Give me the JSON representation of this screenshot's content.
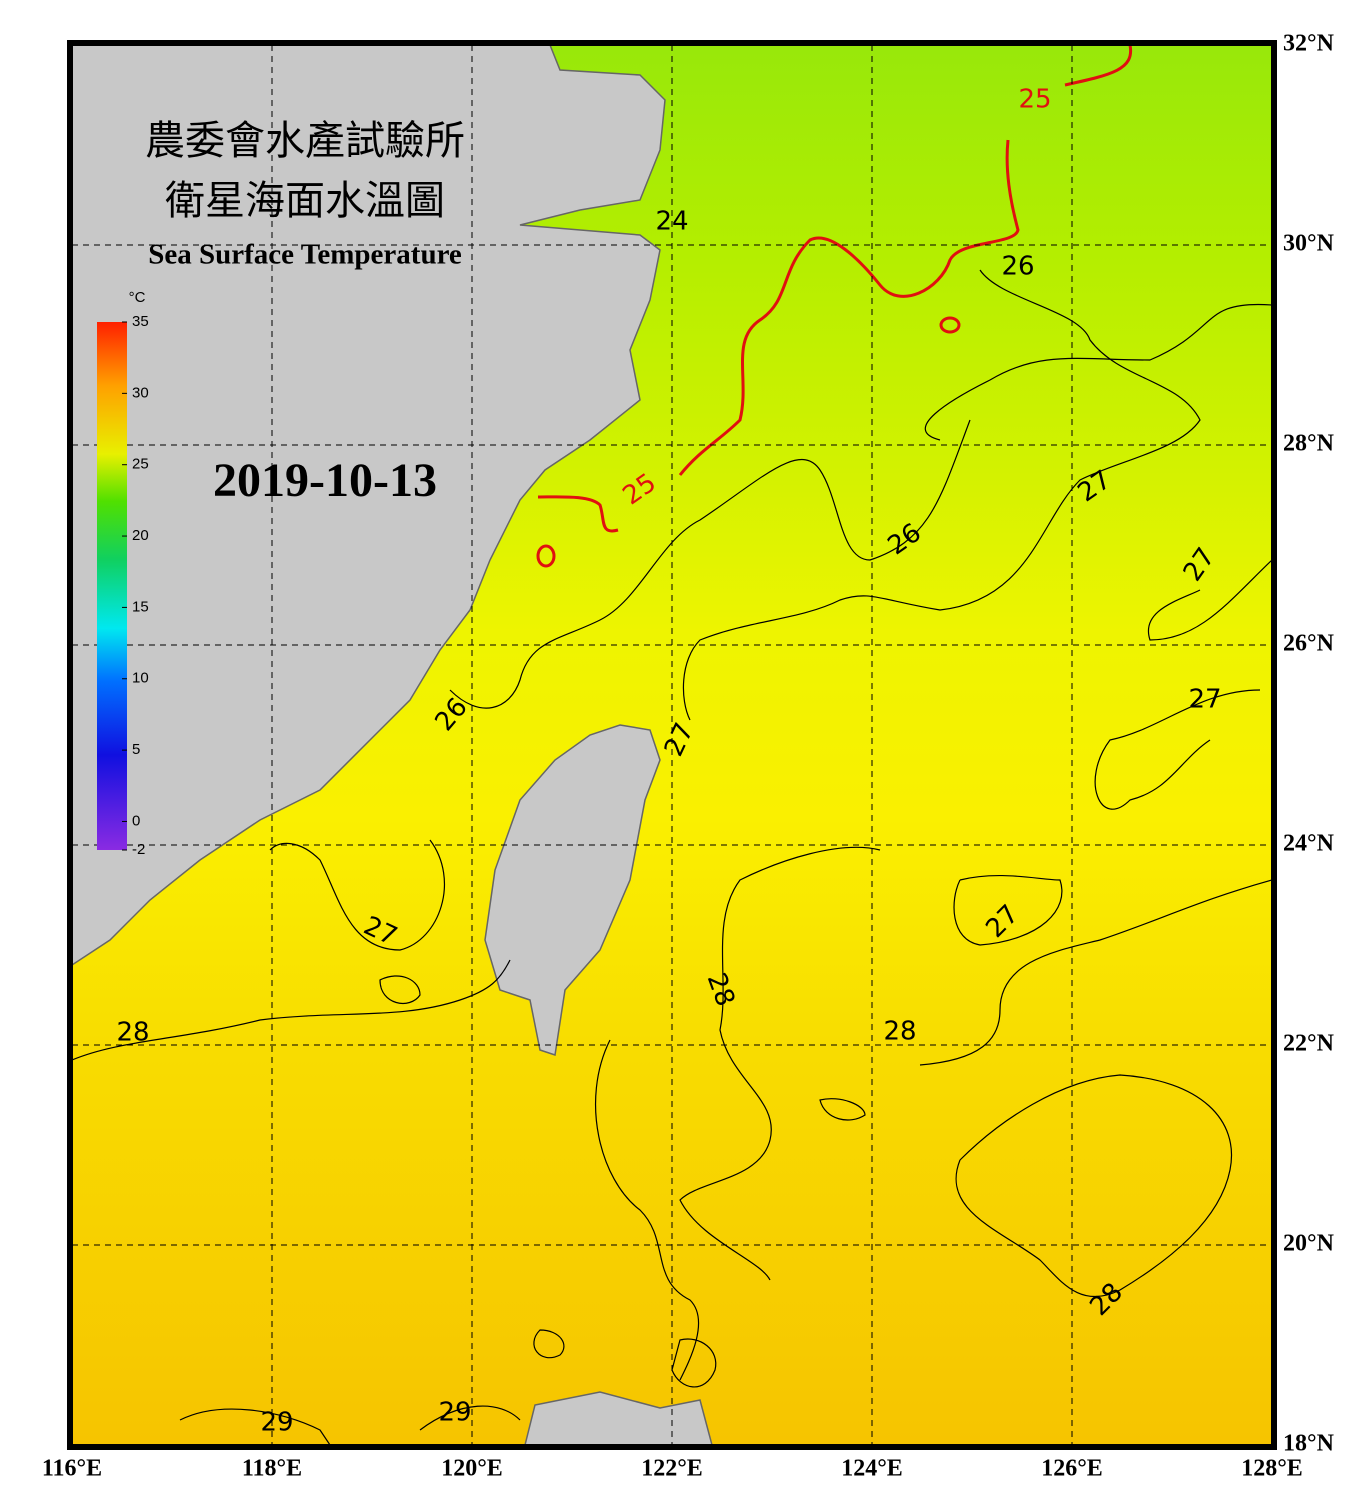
{
  "title": [
    "農委會水產試驗所",
    "衛星海面水溫圖"
  ],
  "subtitle": "Sea Surface Temperature",
  "date": "2019-10-13",
  "colorbar": {
    "unit": "°C",
    "range": [
      -2,
      35
    ],
    "ticks": [
      35,
      30,
      25,
      20,
      15,
      10,
      5,
      0,
      -2
    ]
  },
  "lon_range": [
    116,
    128
  ],
  "lat_range": [
    18,
    32
  ],
  "lon_ticks": [
    {
      "value": 116,
      "label": "116°E"
    },
    {
      "value": 118,
      "label": "118°E"
    },
    {
      "value": 120,
      "label": "120°E"
    },
    {
      "value": 122,
      "label": "122°E"
    },
    {
      "value": 124,
      "label": "124°E"
    },
    {
      "value": 126,
      "label": "126°E"
    },
    {
      "value": 128,
      "label": "128°E"
    }
  ],
  "lat_ticks": [
    {
      "value": 18,
      "label": "18°N"
    },
    {
      "value": 20,
      "label": "20°N"
    },
    {
      "value": 22,
      "label": "22°N"
    },
    {
      "value": 24,
      "label": "24°N"
    },
    {
      "value": 26,
      "label": "26°N"
    },
    {
      "value": 28,
      "label": "28°N"
    },
    {
      "value": 30,
      "label": "30°N"
    },
    {
      "value": 32,
      "label": "32°N"
    }
  ],
  "contour_labels": [
    24,
    25,
    25,
    26,
    26,
    27,
    27,
    27,
    26,
    27,
    27,
    27,
    28,
    28,
    28,
    28,
    29,
    29
  ]
}
